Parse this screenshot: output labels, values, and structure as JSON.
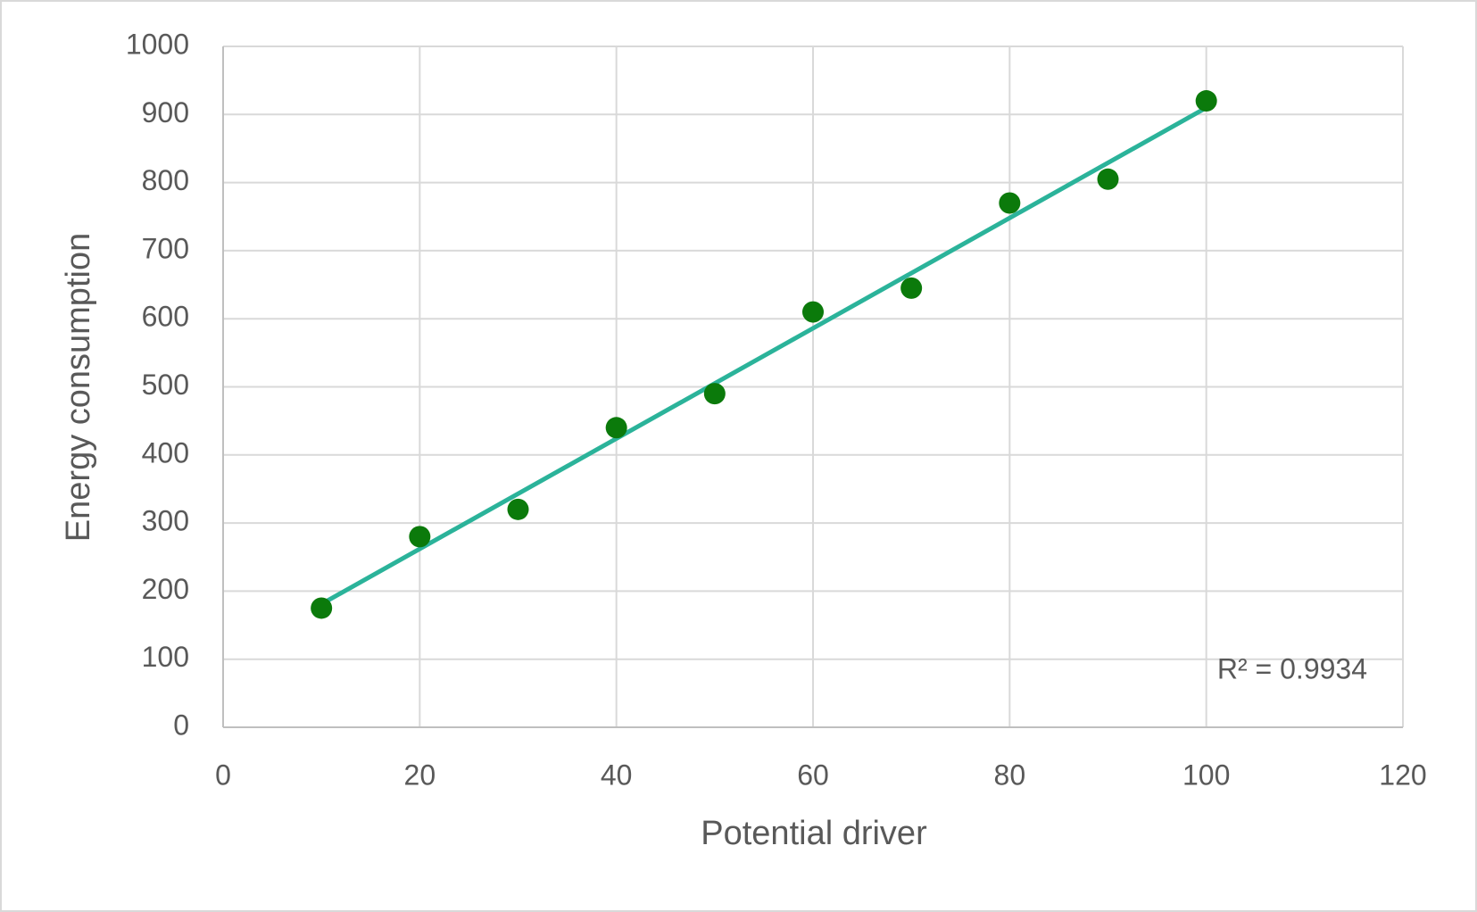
{
  "chart_data": {
    "type": "scatter",
    "x_label": "Potential driver",
    "y_label": "Energy consumption",
    "annotation": "R² = 0.9934",
    "series": [
      {
        "color": "#0b7a0b",
        "x": [
          10,
          20,
          30,
          40,
          50,
          60,
          70,
          80,
          90,
          100
        ],
        "values": [
          175,
          280,
          320,
          440,
          490,
          610,
          645,
          770,
          805,
          920
        ]
      }
    ],
    "trendline": {
      "type": "linear",
      "color": "#2bb39a"
    },
    "xlim": [
      0,
      120
    ],
    "xticks": [
      0,
      20,
      40,
      60,
      80,
      100,
      120
    ],
    "ylim": [
      0,
      1000
    ],
    "yticks": [
      0,
      100,
      200,
      300,
      400,
      500,
      600,
      700,
      800,
      900,
      1000
    ],
    "grid": true
  }
}
